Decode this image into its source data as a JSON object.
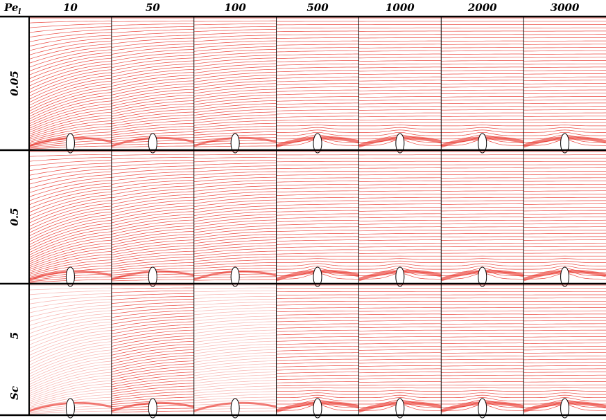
{
  "header": {
    "corner_label": {
      "main": "Pe",
      "sub": "l"
    },
    "columns": [
      "10",
      "50",
      "100",
      "500",
      "1000",
      "2000",
      "3000"
    ]
  },
  "rows": [
    "0.05",
    "0.5",
    "5"
  ],
  "row_axis_label": "Sc"
}
